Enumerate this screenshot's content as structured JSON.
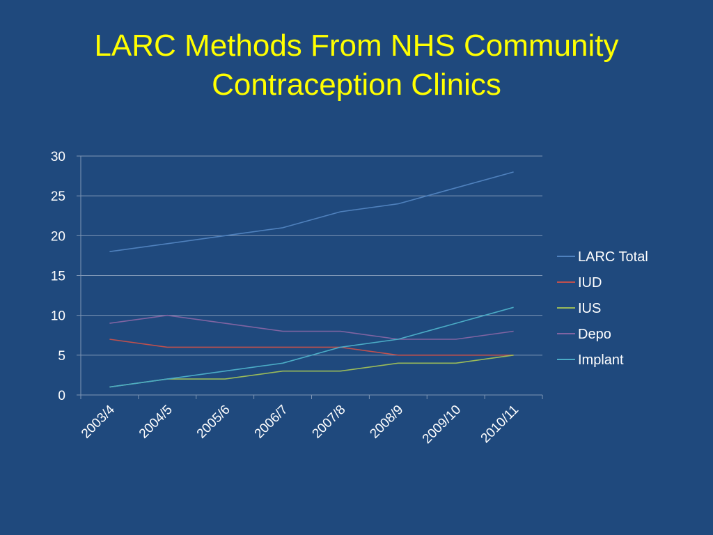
{
  "title": {
    "line1": "LARC Methods From NHS Community",
    "line2": "Contraception Clinics"
  },
  "colors": {
    "background": "#1f497d",
    "title": "#ffff00",
    "text": "#ffffff",
    "gridline": "#7f96b5"
  },
  "chart_data": {
    "type": "line",
    "title": "",
    "xlabel": "",
    "ylabel": "",
    "categories": [
      "2003/4",
      "2004/5",
      "2005/6",
      "2006/7",
      "2007/8",
      "2008/9",
      "2009/10",
      "2010/11"
    ],
    "ylim": [
      0,
      30
    ],
    "yticks": [
      0,
      5,
      10,
      15,
      20,
      25,
      30
    ],
    "grid": true,
    "legend_position": "right",
    "series": [
      {
        "name": "LARC Total",
        "color": "#4f81bd",
        "values": [
          18,
          19,
          20,
          21,
          23,
          24,
          26,
          28
        ]
      },
      {
        "name": "IUD",
        "color": "#c0504d",
        "values": [
          7,
          6,
          6,
          6,
          6,
          5,
          5,
          5
        ]
      },
      {
        "name": "IUS",
        "color": "#9bbb59",
        "values": [
          1,
          2,
          2,
          3,
          3,
          4,
          4,
          5
        ]
      },
      {
        "name": "Depo",
        "color": "#8064a2",
        "values": [
          9,
          10,
          9,
          8,
          8,
          7,
          7,
          8
        ]
      },
      {
        "name": "Implant",
        "color": "#4bacc6",
        "values": [
          1,
          2,
          3,
          4,
          6,
          7,
          9,
          11
        ]
      }
    ]
  }
}
